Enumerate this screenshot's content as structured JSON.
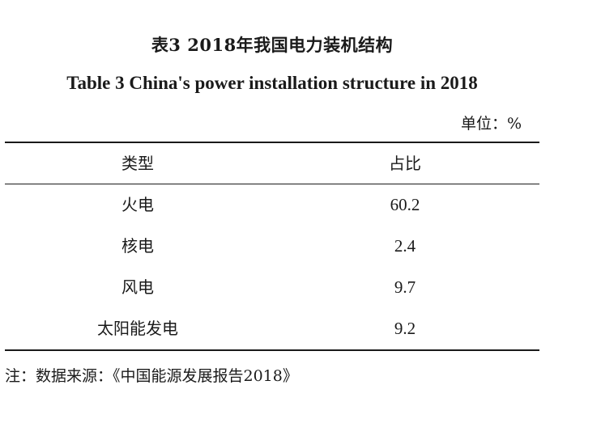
{
  "title_cn": "表3   2018年我国电力装机结构",
  "title_en": "Table 3   China's power installation structure in 2018",
  "unit": "单位：%",
  "table": {
    "headers": [
      "类型",
      "占比"
    ],
    "rows": [
      {
        "type": "火电",
        "share": "60.2"
      },
      {
        "type": "核电",
        "share": "2.4"
      },
      {
        "type": "风电",
        "share": "9.7"
      },
      {
        "type": "太阳能发电",
        "share": "9.2"
      }
    ]
  },
  "note": "注：数据来源：《中国能源发展报告2018》"
}
